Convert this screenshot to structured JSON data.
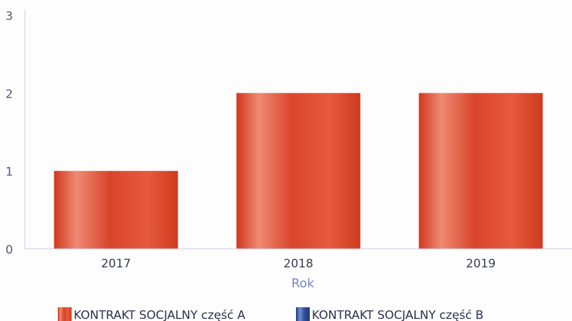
{
  "chart_data": {
    "type": "bar",
    "title": "",
    "xlabel": "Rok",
    "ylabel": "",
    "categories": [
      "2017",
      "2018",
      "2019"
    ],
    "ylim": [
      0,
      3
    ],
    "yticks": [
      0,
      1,
      2,
      3
    ],
    "grid": false,
    "legend_position": "bottom-center",
    "series": [
      {
        "name": "KONTRAKT SOCJALNY część A",
        "color": "#d9452b",
        "values": [
          1,
          2,
          2
        ]
      },
      {
        "name": "KONTRAKT SOCJALNY część B",
        "color": "#2f4f9a",
        "values": [
          0,
          0,
          0
        ]
      }
    ]
  }
}
